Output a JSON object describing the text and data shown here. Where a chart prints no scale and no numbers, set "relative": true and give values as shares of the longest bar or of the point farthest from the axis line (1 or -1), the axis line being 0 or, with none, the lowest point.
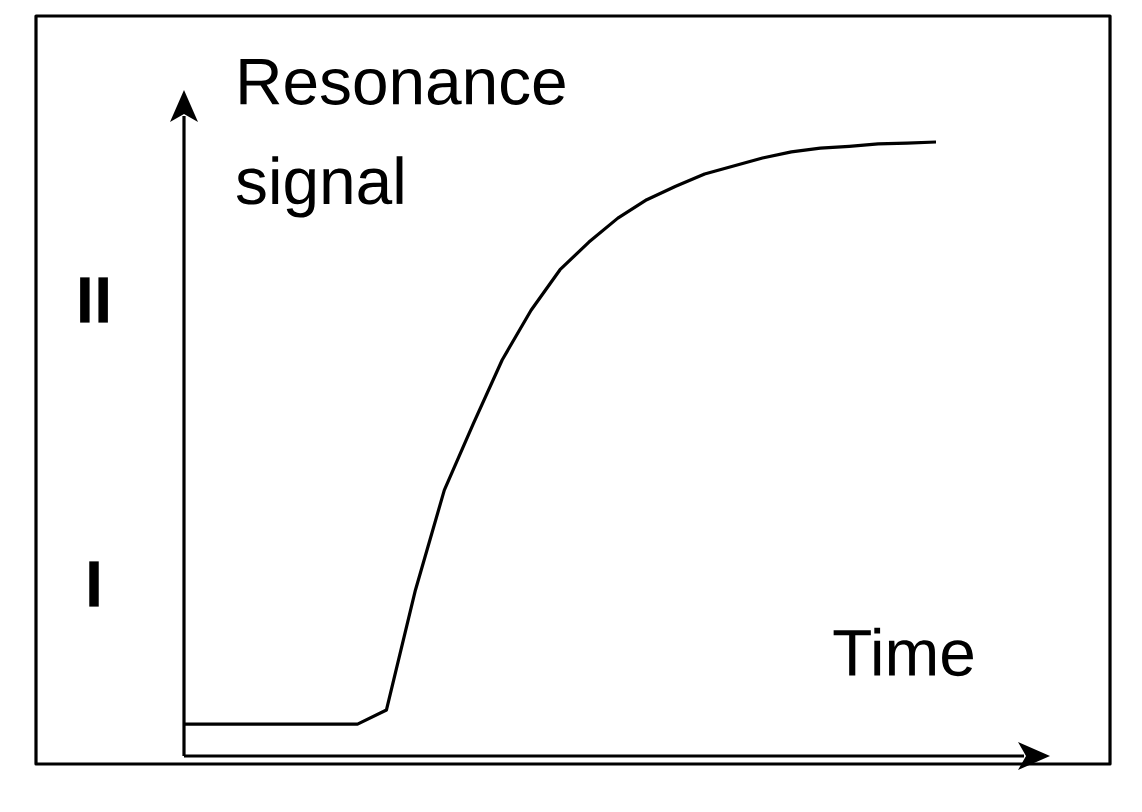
{
  "chart_data": {
    "type": "line",
    "relative": true,
    "xlabel": "Time",
    "ylabel": "Resonance signal",
    "annotations": [
      "II",
      "I"
    ],
    "categories": [
      null,
      null,
      null,
      null,
      null,
      null,
      null,
      null,
      null,
      null,
      null,
      null,
      null,
      null,
      null,
      null,
      null,
      null,
      null,
      null,
      null,
      null,
      null,
      null,
      null,
      null,
      null
    ],
    "values": [
      0.052,
      0.052,
      0.052,
      0.052,
      0.052,
      0.052,
      0.052,
      0.075,
      0.27,
      0.433,
      0.541,
      0.645,
      0.726,
      0.792,
      0.837,
      0.876,
      0.906,
      0.928,
      0.948,
      0.961,
      0.974,
      0.984,
      0.99,
      0.993,
      0.997,
      0.998,
      1.0
    ],
    "color": "#000000",
    "marker": "none",
    "line_style": "solid"
  }
}
